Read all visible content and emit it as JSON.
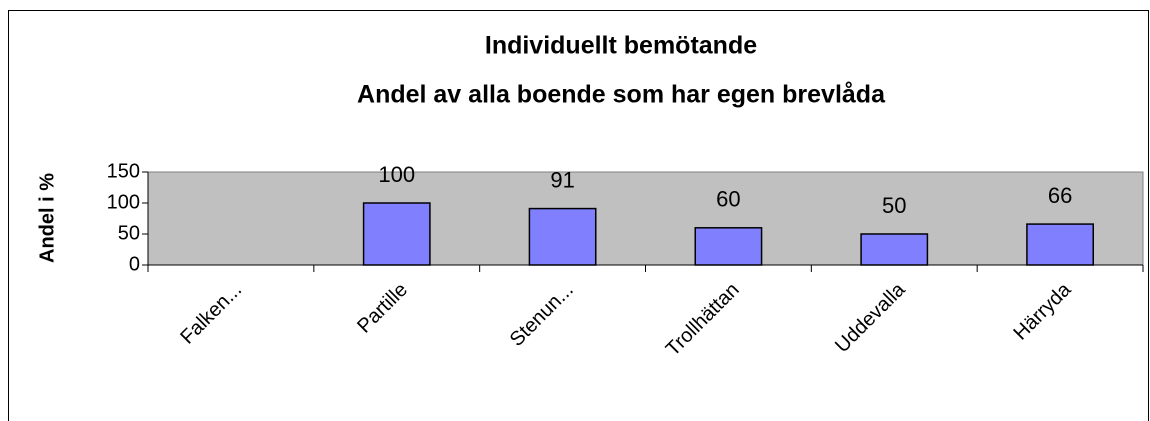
{
  "chart_data": {
    "type": "bar",
    "title": [
      "Individuellt bemötande",
      "Andel av alla boende som har egen brevlåda"
    ],
    "y_label": "Andel i %",
    "categories": [
      "Falken...",
      "Partille",
      "Stenun...",
      "Trollhättan",
      "Uddevalla",
      "Härryda"
    ],
    "values": [
      null,
      100,
      91,
      60,
      50,
      66
    ],
    "color": "#8080ff",
    "plot_background": "#c0c0c0",
    "ylim": [
      0,
      150
    ],
    "yticks": [
      0,
      50,
      100,
      150
    ],
    "grid": false
  }
}
